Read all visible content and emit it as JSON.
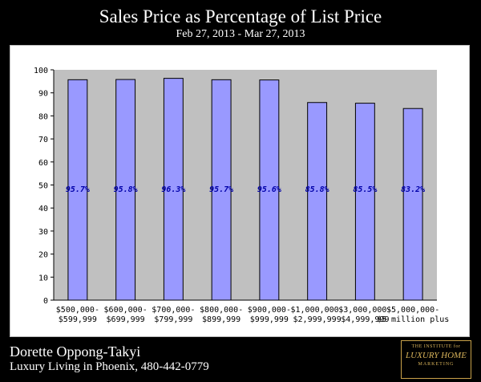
{
  "header": {
    "title": "Sales Price as Percentage of List Price",
    "subtitle": "Feb 27, 2013 - Mar 27, 2013"
  },
  "footer": {
    "agent_name": "Dorette Oppong-Takyi",
    "tagline": "Luxury Living in Phoenix, 480-442-0779",
    "logo_line1": "THE INSTITUTE for",
    "logo_line2": "LUXURY HOME",
    "logo_line3": "MARKETING"
  },
  "colors": {
    "background": "#000000",
    "plot_area": "#c0c0c0",
    "bar_fill": "#9999ff",
    "bar_stroke": "#000000",
    "label_text": "#0000aa"
  },
  "chart_data": {
    "type": "bar",
    "categories": [
      [
        "$500,000-",
        "$599,999"
      ],
      [
        "$600,000-",
        "$699,999"
      ],
      [
        "$700,000-",
        "$799,999"
      ],
      [
        "$800,000-",
        "$899,999"
      ],
      [
        "$900,000-",
        "$999,999"
      ],
      [
        "$1,000,000-",
        "$2,999,999"
      ],
      [
        "$3,000,000-",
        "$4,999,999"
      ],
      [
        "$5,000,000-",
        "$5 million plus"
      ]
    ],
    "values": [
      95.7,
      95.8,
      96.3,
      95.7,
      95.6,
      85.8,
      85.5,
      83.2
    ],
    "data_labels": [
      "95.7%",
      "95.8%",
      "96.3%",
      "95.7%",
      "95.6%",
      "85.8%",
      "85.5%",
      "83.2%"
    ],
    "ylim": [
      0,
      100
    ],
    "yticks": [
      0,
      10,
      20,
      30,
      40,
      50,
      60,
      70,
      80,
      90,
      100
    ],
    "grid": false,
    "legend": "none"
  }
}
